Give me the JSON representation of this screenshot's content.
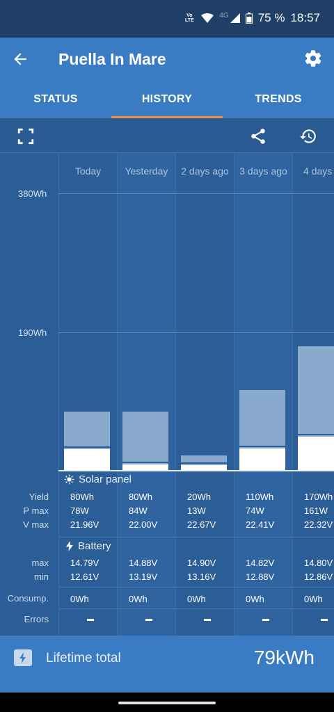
{
  "status_bar": {
    "battery": "75 %",
    "time": "18:57",
    "volte_top": "Vo",
    "volte_mid": "LTE",
    "net": "4G"
  },
  "app_bar": {
    "title": "Puella In Mare"
  },
  "tabs": [
    {
      "label": "STATUS",
      "active": false
    },
    {
      "label": "HISTORY",
      "active": true
    },
    {
      "label": "TRENDS",
      "active": false
    }
  ],
  "chart": {
    "y_labels": [
      "380Wh",
      "190Wh"
    ],
    "days": [
      "Today",
      "Yesterday",
      "2 days ago",
      "3 days ago",
      "4 days a"
    ]
  },
  "chart_data": {
    "type": "bar",
    "categories": [
      "Today",
      "Yesterday",
      "2 days ago",
      "3 days ago",
      "4 days a"
    ],
    "values": [
      80,
      80,
      20,
      110,
      170
    ],
    "ylabel": "",
    "ylim": [
      0,
      380
    ]
  },
  "solar_panel": {
    "header": "Solar panel",
    "labels": {
      "yield": "Yield",
      "pmax": "P max",
      "vmax": "V max"
    },
    "yield": [
      "80Wh",
      "80Wh",
      "20Wh",
      "110Wh",
      "170Wh"
    ],
    "pmax": [
      "78W",
      "84W",
      "13W",
      "74W",
      "161W"
    ],
    "vmax": [
      "21.96V",
      "22.00V",
      "22.67V",
      "22.41V",
      "22.32V"
    ]
  },
  "battery": {
    "header": "Battery",
    "labels": {
      "max": "max",
      "min": "min"
    },
    "max": [
      "14.79V",
      "14.88V",
      "14.90V",
      "14.82V",
      "14.80V"
    ],
    "min": [
      "12.61V",
      "13.19V",
      "13.16V",
      "12.88V",
      "12.86V"
    ]
  },
  "consumption": {
    "label": "Consump.",
    "values": [
      "0Wh",
      "0Wh",
      "0Wh",
      "0Wh",
      "0Wh"
    ]
  },
  "errors": {
    "label": "Errors"
  },
  "footer": {
    "label": "Lifetime total",
    "value": "79kWh"
  },
  "icons": [
    "back-arrow-icon",
    "gear-icon",
    "fullscreen-icon",
    "share-icon",
    "history-icon",
    "sun-icon",
    "bolt-icon"
  ]
}
